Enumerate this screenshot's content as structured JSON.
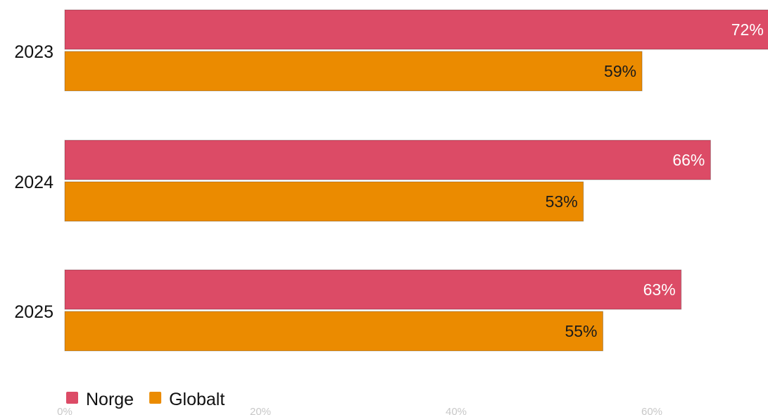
{
  "chart_data": {
    "type": "bar",
    "orientation": "horizontal",
    "categories": [
      "2023",
      "2024",
      "2025"
    ],
    "series": [
      {
        "name": "Norge",
        "values": [
          72,
          66,
          63
        ],
        "color": "#dc4b66",
        "label_color": "#ffffff"
      },
      {
        "name": "Globalt",
        "values": [
          59,
          53,
          55
        ],
        "color": "#eb8b00",
        "label_color": "#1a1a1a"
      }
    ],
    "value_suffix": "%",
    "xlim": [
      0,
      72
    ],
    "x_ticks": [
      0,
      20,
      40,
      60
    ],
    "x_tick_labels": [
      "0%",
      "20%",
      "40%",
      "60%"
    ],
    "legend_position": "bottom-left",
    "grid": false
  }
}
